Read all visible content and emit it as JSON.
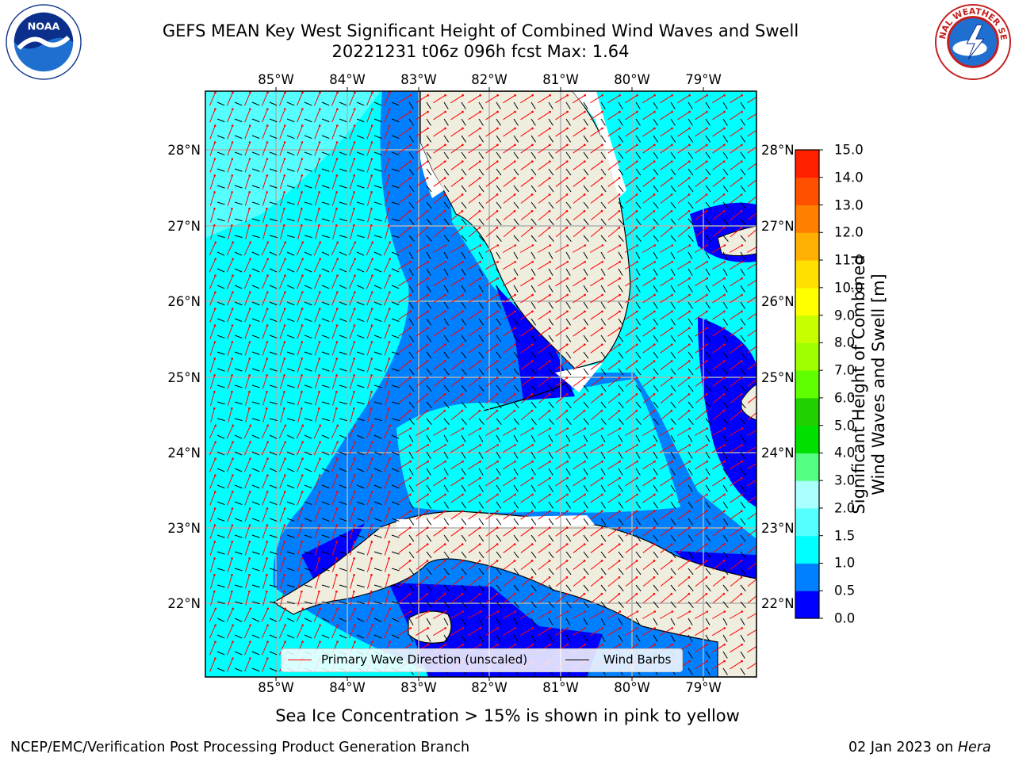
{
  "title": {
    "line1": "GEFS MEAN Key West Significant Height of Combined Wind Waves and Swell",
    "line2": "20221231 t06z 096h fcst   Max: 1.64"
  },
  "logos": {
    "left": "NOAA",
    "right": "NATIONAL WEATHER SERVICE"
  },
  "axes": {
    "lon_labels": [
      "85°W",
      "84°W",
      "83°W",
      "82°W",
      "81°W",
      "80°W",
      "79°W"
    ],
    "lat_labels": [
      "28°N",
      "27°N",
      "26°N",
      "25°N",
      "24°N",
      "23°N",
      "22°N"
    ]
  },
  "colorbar": {
    "label": "Significant Height of Combined Wind Waves and Swell [m]",
    "label_line1": "Significant Height of Combined",
    "label_line2": "Wind Waves and Swell [m]",
    "ticks": [
      "0.0",
      "0.5",
      "1.0",
      "1.5",
      "2.0",
      "3.0",
      "4.0",
      "5.0",
      "6.0",
      "7.0",
      "8.0",
      "9.0",
      "10.0",
      "11.0",
      "12.0",
      "13.0",
      "14.0",
      "15.0"
    ],
    "colors": [
      "#0000ff",
      "#0080ff",
      "#00ffff",
      "#55ffff",
      "#aaffff",
      "#55ff80",
      "#00e000",
      "#20d000",
      "#60ff00",
      "#a0ff00",
      "#c8ff00",
      "#ffff00",
      "#ffe000",
      "#ffb000",
      "#ff8000",
      "#ff5000",
      "#ff2000",
      "#ff0000"
    ]
  },
  "legend": {
    "wave_direction": "Primary Wave Direction (unscaled)",
    "wind_barbs": "Wind Barbs",
    "wave_color": "#ff0000",
    "barb_color": "#000000"
  },
  "subcaption": "Sea Ice Concentration > 15% is shown in pink to yellow",
  "footer": {
    "left": "NCEP/EMC/Verification Post Processing Product Generation Branch",
    "date": "02 Jan 2023 on",
    "host": "Hera"
  },
  "map_colors": {
    "land": "#efedde",
    "water_deep": "#0000ff",
    "water_mid": "#0080ff",
    "water_light": "#00ffff",
    "water_lighter": "#55ffff",
    "grid": "#b0b0b0"
  }
}
